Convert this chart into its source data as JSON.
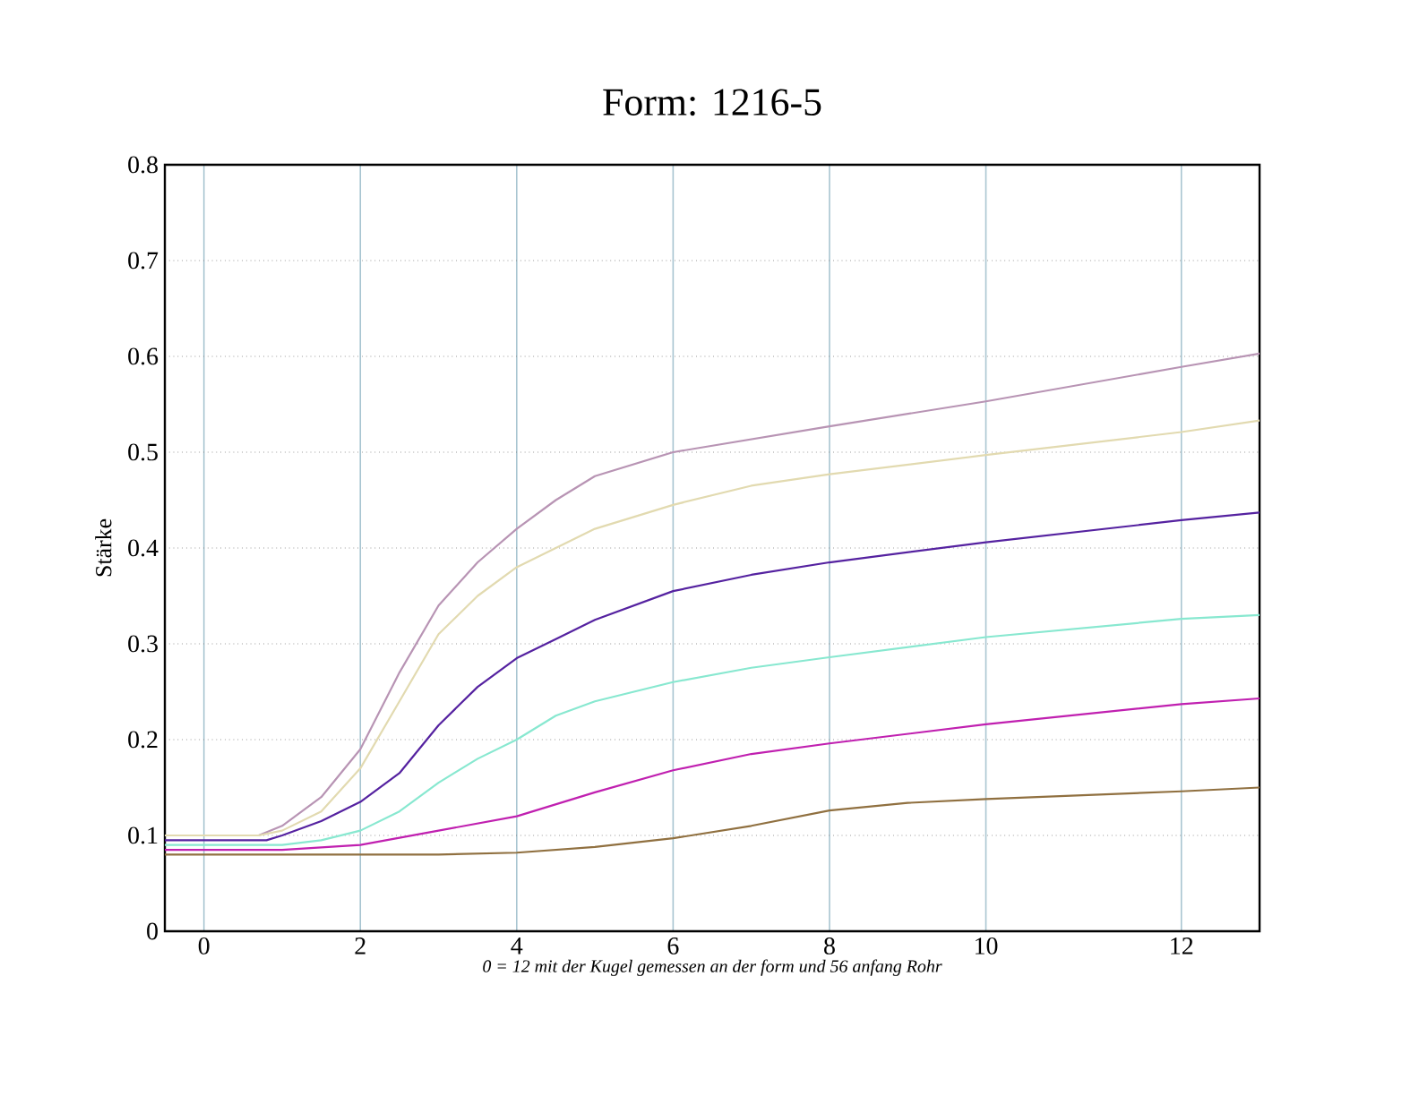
{
  "chart_data": {
    "type": "line",
    "title": "Form:  1216-5",
    "xlabel": "0 = 12 mit der Kugel gemessen an der form und 56 anfang Rohr",
    "ylabel": "Stärke",
    "xlim": [
      -0.5,
      13.5
    ],
    "ylim": [
      0,
      0.8
    ],
    "xticks": [
      0,
      2,
      4,
      6,
      8,
      10,
      {
        "value": 12.5,
        "label": "12"
      }
    ],
    "yticks": [
      0,
      0.1,
      0.2,
      0.3,
      0.4,
      0.5,
      0.6,
      0.7,
      0.8
    ],
    "grid": true,
    "marker": "none",
    "line_style": "solid",
    "series": [
      {
        "color": "#b894b4",
        "x": [
          -0.5,
          0.7,
          1,
          1.5,
          2,
          2.5,
          3,
          3.5,
          4,
          4.5,
          5,
          6,
          8,
          10,
          12.5,
          13.5
        ],
        "values": [
          0.1,
          0.1,
          0.11,
          0.14,
          0.19,
          0.27,
          0.34,
          0.385,
          0.42,
          0.45,
          0.475,
          0.5,
          0.527,
          0.553,
          0.589,
          0.603
        ]
      },
      {
        "color": "#e2dab0",
        "x": [
          -0.5,
          0.7,
          1,
          1.5,
          2,
          2.5,
          3,
          3.5,
          4,
          5,
          6,
          7,
          8,
          10,
          12.5,
          13.5
        ],
        "values": [
          0.1,
          0.1,
          0.105,
          0.125,
          0.17,
          0.24,
          0.31,
          0.35,
          0.38,
          0.42,
          0.445,
          0.465,
          0.477,
          0.497,
          0.521,
          0.533
        ]
      },
      {
        "color": "#5522a0",
        "x": [
          -0.5,
          0.8,
          1,
          1.5,
          2,
          2.5,
          3,
          3.5,
          4,
          4.5,
          5,
          6,
          7,
          8,
          10,
          12.5,
          13.5
        ],
        "values": [
          0.095,
          0.095,
          0.1,
          0.115,
          0.135,
          0.165,
          0.215,
          0.255,
          0.285,
          0.305,
          0.325,
          0.355,
          0.372,
          0.385,
          0.406,
          0.429,
          0.437
        ]
      },
      {
        "color": "#88e8d0",
        "x": [
          -0.5,
          1,
          1.5,
          2,
          2.5,
          3,
          3.5,
          4,
          4.5,
          5,
          6,
          7,
          8,
          10,
          12.5,
          13.5
        ],
        "values": [
          0.09,
          0.09,
          0.095,
          0.105,
          0.125,
          0.155,
          0.18,
          0.2,
          0.225,
          0.24,
          0.26,
          0.275,
          0.286,
          0.307,
          0.326,
          0.33
        ]
      },
      {
        "color": "#c020b0",
        "x": [
          -0.5,
          1,
          2,
          3,
          4,
          5,
          6,
          7,
          8,
          10,
          12.5,
          13.5
        ],
        "values": [
          0.085,
          0.085,
          0.09,
          0.105,
          0.12,
          0.145,
          0.168,
          0.185,
          0.196,
          0.216,
          0.237,
          0.243
        ]
      },
      {
        "color": "#907040",
        "x": [
          -0.5,
          3,
          4,
          5,
          6,
          7,
          8,
          9,
          10,
          12.5,
          13.5
        ],
        "values": [
          0.08,
          0.08,
          0.082,
          0.088,
          0.097,
          0.11,
          0.126,
          0.134,
          0.138,
          0.146,
          0.15
        ]
      }
    ]
  }
}
